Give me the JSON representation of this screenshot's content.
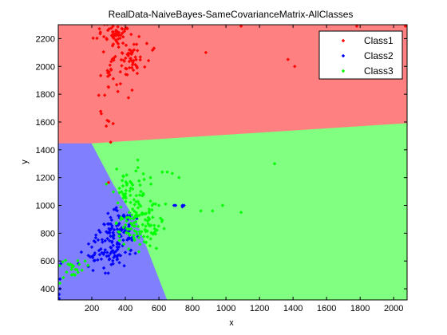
{
  "chart_data": {
    "type": "scatter",
    "title": "RealData-NaiveBayes-SameCovarianceMatrix-AllClasses",
    "xlabel": "x",
    "ylabel": "y",
    "xlim": [
      0,
      2080
    ],
    "ylim": [
      320,
      2300
    ],
    "xticks": [
      200,
      400,
      600,
      800,
      1000,
      1200,
      1400,
      1600,
      1800,
      2000
    ],
    "yticks": [
      400,
      600,
      800,
      1000,
      1200,
      1400,
      1600,
      1800,
      2000,
      2200
    ],
    "legend_position": "top-right",
    "grid": false,
    "decision_regions": [
      {
        "class": "Class1",
        "color": "#ff8080",
        "polygon": [
          [
            0,
            2300
          ],
          [
            2080,
            2300
          ],
          [
            2080,
            1590
          ],
          [
            200,
            1445
          ],
          [
            0,
            1445
          ]
        ]
      },
      {
        "class": "Class2",
        "color": "#8080ff",
        "polygon": [
          [
            0,
            1445
          ],
          [
            200,
            1445
          ],
          [
            330,
            1150
          ],
          [
            470,
            880
          ],
          [
            650,
            320
          ],
          [
            0,
            320
          ]
        ]
      },
      {
        "class": "Class3",
        "color": "#80ff80",
        "polygon": [
          [
            200,
            1445
          ],
          [
            2080,
            1590
          ],
          [
            2080,
            320
          ],
          [
            650,
            320
          ],
          [
            470,
            880
          ],
          [
            330,
            1150
          ]
        ]
      }
    ],
    "series": [
      {
        "name": "Class1",
        "color": "#ff0000",
        "clusters": [
          {
            "cx": 340,
            "cy": 2240,
            "sx": 50,
            "sy": 40,
            "n": 45
          },
          {
            "cx": 420,
            "cy": 2090,
            "sx": 60,
            "sy": 80,
            "n": 60
          },
          {
            "cx": 330,
            "cy": 1960,
            "sx": 40,
            "sy": 150,
            "n": 25
          },
          {
            "cx": 300,
            "cy": 1580,
            "sx": 20,
            "sy": 60,
            "n": 6
          }
        ],
        "extra": [
          [
            880,
            2100
          ],
          [
            1090,
            2290
          ],
          [
            1410,
            2000
          ],
          [
            2070,
            2290
          ],
          [
            1780,
            2290
          ],
          [
            300,
            1165
          ],
          [
            300,
            1850
          ],
          [
            1370,
            2050
          ]
        ]
      },
      {
        "name": "Class2",
        "color": "#0000ff",
        "clusters": [
          {
            "cx": 340,
            "cy": 760,
            "sx": 70,
            "sy": 80,
            "n": 80
          },
          {
            "cx": 280,
            "cy": 640,
            "sx": 60,
            "sy": 50,
            "n": 40
          },
          {
            "cx": 360,
            "cy": 880,
            "sx": 40,
            "sy": 60,
            "n": 25
          }
        ],
        "extra": [
          [
            5,
            360
          ],
          [
            5,
            330
          ],
          [
            10,
            400
          ],
          [
            10,
            470
          ],
          [
            15,
            580
          ],
          [
            120,
            580
          ],
          [
            200,
            700
          ],
          [
            280,
            680
          ],
          [
            740,
            1000
          ],
          [
            750,
            1000
          ],
          [
            690,
            1000
          ],
          [
            700,
            1000
          ],
          [
            740,
            990
          ]
        ]
      },
      {
        "name": "Class3",
        "color": "#00ff00",
        "clusters": [
          {
            "cx": 470,
            "cy": 860,
            "sx": 70,
            "sy": 90,
            "n": 110
          },
          {
            "cx": 420,
            "cy": 1150,
            "sx": 60,
            "sy": 80,
            "n": 45
          },
          {
            "cx": 100,
            "cy": 560,
            "sx": 50,
            "sy": 40,
            "n": 20
          }
        ],
        "extra": [
          [
            680,
            1230
          ],
          [
            620,
            1240
          ],
          [
            560,
            1000
          ],
          [
            850,
            960
          ],
          [
            920,
            960
          ],
          [
            1290,
            1300
          ],
          [
            1090,
            950
          ],
          [
            980,
            1000
          ],
          [
            720,
            1200
          ],
          [
            640,
            1010
          ],
          [
            600,
            1000
          ],
          [
            580,
            1010
          ],
          [
            50,
            520
          ],
          [
            30,
            480
          ],
          [
            10,
            440
          ],
          [
            80,
            500
          ],
          [
            160,
            600
          ],
          [
            650,
            1240
          ],
          [
            550,
            1200
          ]
        ]
      }
    ]
  }
}
